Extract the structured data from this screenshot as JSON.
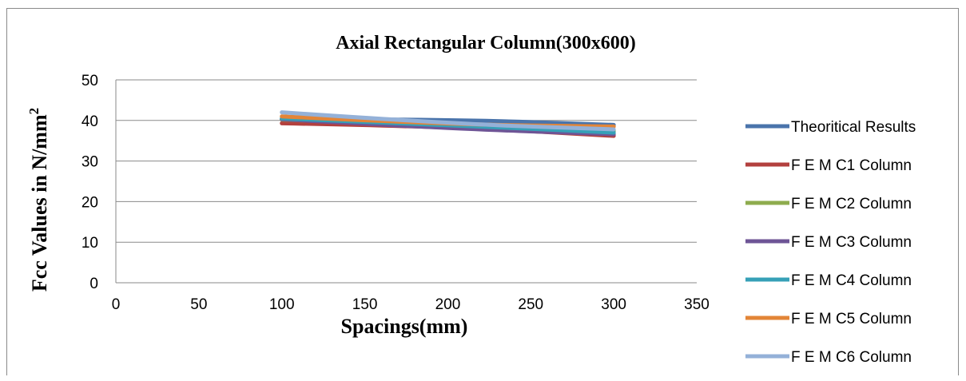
{
  "chart_data": {
    "type": "line",
    "title": "Axial Rectangular Column(300x600)",
    "xlabel": "Spacings(mm)",
    "ylabel_main": "Fcc Values in N/mm",
    "ylabel_sup": "2",
    "xlim": [
      0,
      350
    ],
    "ylim": [
      0,
      50
    ],
    "xticks": [
      0,
      50,
      100,
      150,
      200,
      250,
      300,
      350
    ],
    "yticks": [
      0,
      10,
      20,
      30,
      40,
      50
    ],
    "grid": "horizontal",
    "legend_position": "right",
    "x": [
      100,
      200,
      300
    ],
    "series": [
      {
        "name": "Theoritical Results",
        "color": "#4a74ab",
        "values": [
          40.3,
          40.3,
          38.9
        ]
      },
      {
        "name": "F E M C1 Column",
        "color": "#b3403e",
        "values": [
          39.3,
          38.5,
          36.2
        ]
      },
      {
        "name": "F E M C2 Column",
        "color": "#8eac4e",
        "values": [
          40.2,
          38.6,
          37.4
        ]
      },
      {
        "name": "F E M C3 Column",
        "color": "#6e5596",
        "values": [
          40.3,
          38.0,
          36.6
        ]
      },
      {
        "name": "F E M C4 Column",
        "color": "#36a0b7",
        "values": [
          40.5,
          38.9,
          37.0
        ]
      },
      {
        "name": "F E M C5 Column",
        "color": "#e38537",
        "values": [
          41.0,
          39.0,
          38.5
        ]
      },
      {
        "name": "F E M C6 Column",
        "color": "#94b1d8",
        "values": [
          42.0,
          39.2,
          37.8
        ]
      }
    ]
  }
}
